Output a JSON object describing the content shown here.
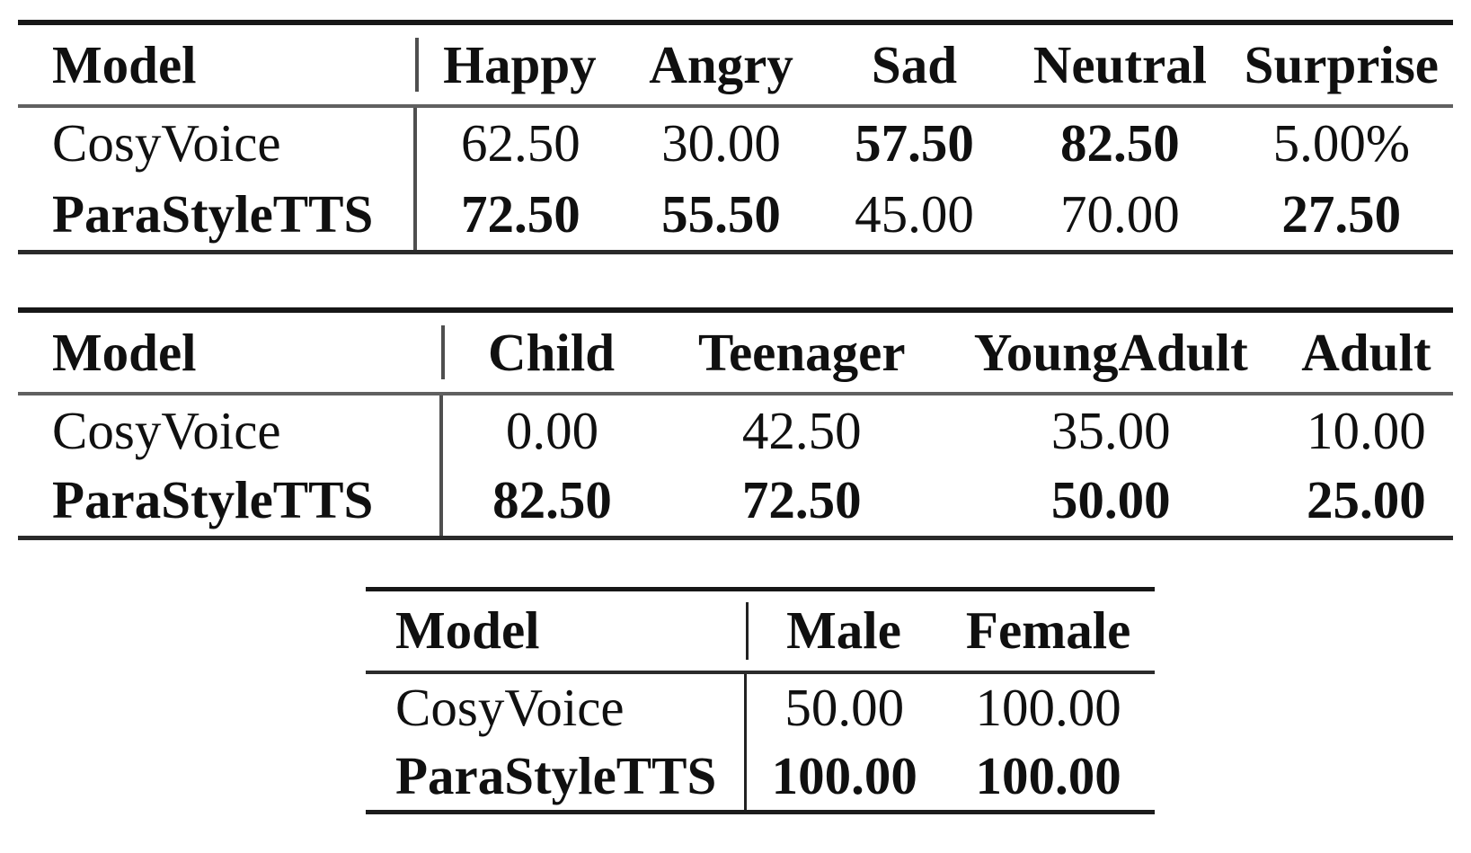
{
  "page": {
    "background": "#ffffff"
  },
  "colors": {
    "text": "#101010",
    "rule_heavy": "#171717",
    "rule_light": "#606060",
    "divider": "#4f4f4f"
  },
  "tables": [
    {
      "id": "emotion",
      "columns": [
        "Model",
        "Happy",
        "Angry",
        "Sad",
        "Neutral",
        "Surprise"
      ],
      "rows": [
        {
          "cells": [
            {
              "text": "CosyVoice",
              "bold": false
            },
            {
              "text": "62.50",
              "bold": false
            },
            {
              "text": "30.00",
              "bold": false
            },
            {
              "text": "57.50",
              "bold": true
            },
            {
              "text": "82.50",
              "bold": true
            },
            {
              "text": "5.00%",
              "bold": false
            }
          ]
        },
        {
          "cells": [
            {
              "text": "ParaStyleTTS",
              "bold": true
            },
            {
              "text": "72.50",
              "bold": true
            },
            {
              "text": "55.50",
              "bold": true
            },
            {
              "text": "45.00",
              "bold": false
            },
            {
              "text": "70.00",
              "bold": false
            },
            {
              "text": "27.50",
              "bold": true
            }
          ]
        }
      ]
    },
    {
      "id": "age",
      "columns": [
        "Model",
        "Child",
        "Teenager",
        "YoungAdult",
        "Adult"
      ],
      "rows": [
        {
          "cells": [
            {
              "text": "CosyVoice",
              "bold": false
            },
            {
              "text": "0.00",
              "bold": false
            },
            {
              "text": "42.50",
              "bold": false
            },
            {
              "text": "35.00",
              "bold": false
            },
            {
              "text": "10.00",
              "bold": false
            }
          ]
        },
        {
          "cells": [
            {
              "text": "ParaStyleTTS",
              "bold": true
            },
            {
              "text": "82.50",
              "bold": true
            },
            {
              "text": "72.50",
              "bold": true
            },
            {
              "text": "50.00",
              "bold": true
            },
            {
              "text": "25.00",
              "bold": true
            }
          ]
        }
      ]
    },
    {
      "id": "gender",
      "columns": [
        "Model",
        "Male",
        "Female"
      ],
      "rows": [
        {
          "cells": [
            {
              "text": "CosyVoice",
              "bold": false
            },
            {
              "text": "50.00",
              "bold": false
            },
            {
              "text": "100.00",
              "bold": false
            }
          ]
        },
        {
          "cells": [
            {
              "text": "ParaStyleTTS",
              "bold": true
            },
            {
              "text": "100.00",
              "bold": true
            },
            {
              "text": "100.00",
              "bold": true
            }
          ]
        }
      ]
    }
  ]
}
